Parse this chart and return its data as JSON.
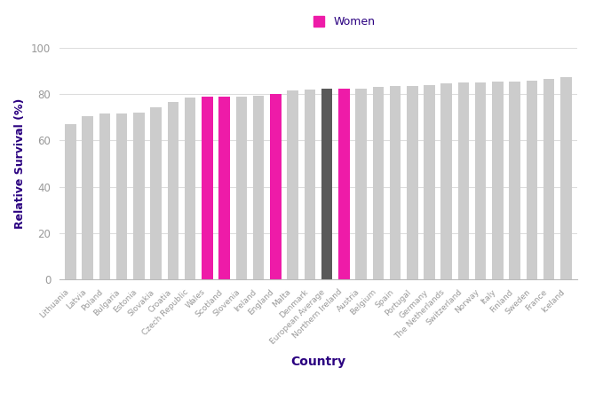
{
  "countries": [
    "Lithuania",
    "Latvia",
    "Poland",
    "Bulgaria",
    "Estonia",
    "Slovakia",
    "Croatia",
    "Czech Republic",
    "Wales",
    "Scotland",
    "Slovenia",
    "Ireland",
    "England",
    "Malta",
    "Denmark",
    "European Average",
    "Northern Ireland",
    "Austria",
    "Belgium",
    "Spain",
    "Portugal",
    "Germany",
    "The Netherlands",
    "Switzerland",
    "Norway",
    "Italy",
    "Finland",
    "Sweden",
    "France",
    "Iceland"
  ],
  "values": [
    67.0,
    70.5,
    71.5,
    71.5,
    72.0,
    74.5,
    76.5,
    78.5,
    79.0,
    79.0,
    79.0,
    79.5,
    80.0,
    81.5,
    82.0,
    82.5,
    82.5,
    82.5,
    83.0,
    83.5,
    83.5,
    84.0,
    84.5,
    85.0,
    85.0,
    85.5,
    85.5,
    86.0,
    86.5,
    87.5
  ],
  "colors": [
    "#cccccc",
    "#cccccc",
    "#cccccc",
    "#cccccc",
    "#cccccc",
    "#cccccc",
    "#cccccc",
    "#cccccc",
    "#ee1ba8",
    "#ee1ba8",
    "#cccccc",
    "#cccccc",
    "#ee1ba8",
    "#cccccc",
    "#cccccc",
    "#5a5a5a",
    "#ee1ba8",
    "#cccccc",
    "#cccccc",
    "#cccccc",
    "#cccccc",
    "#cccccc",
    "#cccccc",
    "#cccccc",
    "#cccccc",
    "#cccccc",
    "#cccccc",
    "#cccccc",
    "#cccccc",
    "#cccccc"
  ],
  "ylabel": "Relative Survival (%)",
  "xlabel": "Country",
  "ylim": [
    0,
    100
  ],
  "yticks": [
    0,
    20,
    40,
    60,
    80,
    100
  ],
  "legend_label": "Women",
  "legend_color": "#ee1ba8",
  "axis_label_color": "#2a0080",
  "tick_label_color": "#999999",
  "grid_color": "#dddddd",
  "background_color": "#ffffff",
  "bar_width": 0.65
}
